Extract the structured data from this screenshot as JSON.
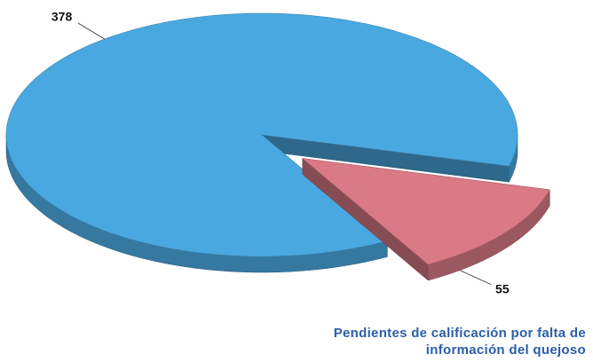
{
  "chart_data": {
    "type": "pie",
    "categories": [
      null,
      "Pendientes de calificación por falta de información del quejoso"
    ],
    "values": [
      378,
      55
    ],
    "colors": [
      "#4aa8e0",
      "#d97a86"
    ]
  }
}
